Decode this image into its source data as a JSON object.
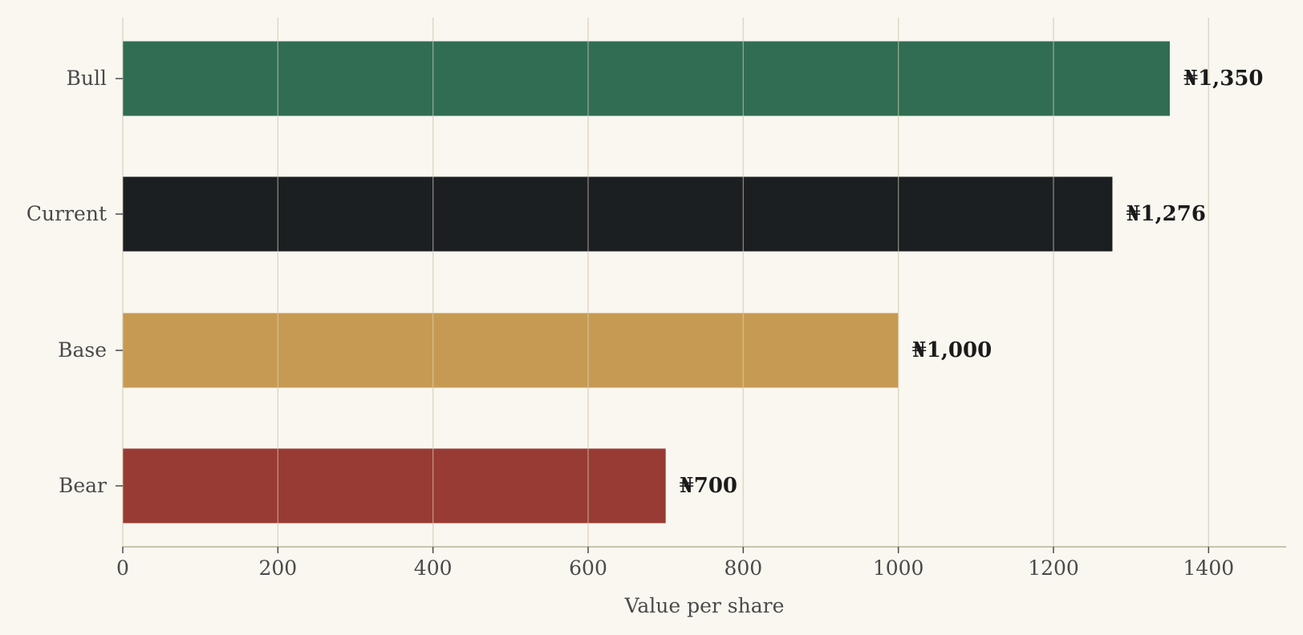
{
  "chart_data": {
    "type": "bar",
    "orientation": "horizontal",
    "categories": [
      "Bull",
      "Current",
      "Base",
      "Bear"
    ],
    "values": [
      1350,
      1276,
      1000,
      700
    ],
    "value_labels": [
      "₦1,350",
      "₦1,276",
      "₦1,000",
      "₦700"
    ],
    "colors": [
      "#316d52",
      "#1c1f22",
      "#c79a53",
      "#983b34"
    ],
    "xlabel": "Value per share",
    "ylabel": "",
    "xlim": [
      0,
      1500
    ],
    "xticks": [
      0,
      200,
      400,
      600,
      800,
      1000,
      1200,
      1400
    ],
    "grid": "vertical",
    "background": "#f9f7ef"
  }
}
